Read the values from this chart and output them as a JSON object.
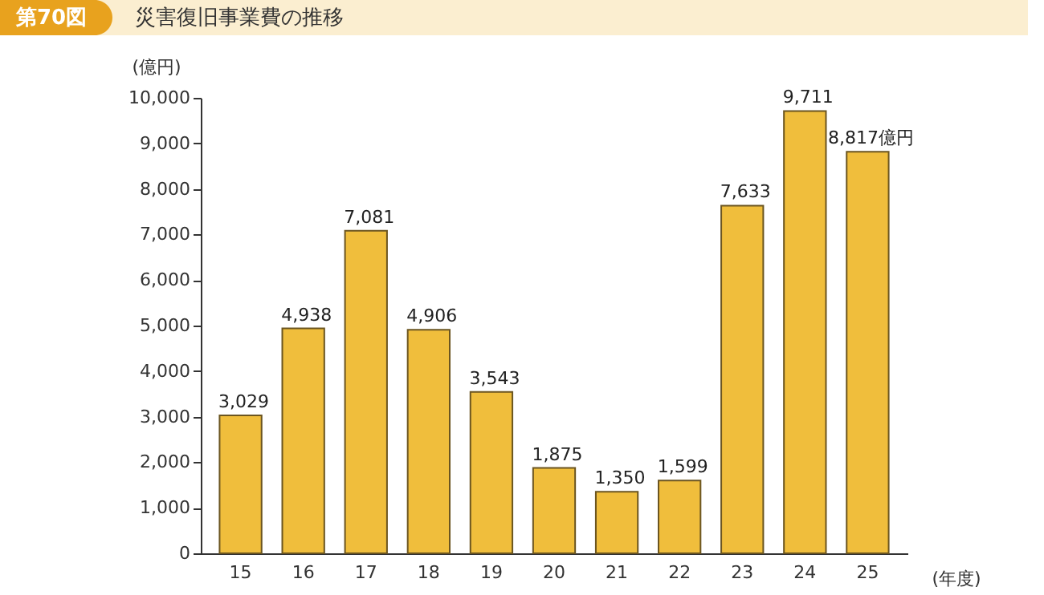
{
  "chart_data": {
    "type": "bar",
    "title": "災害復旧事業費の推移",
    "annotations": [
      "第70図"
    ],
    "ylabel": "(億円)",
    "xlabel": "(年度)",
    "categories": [
      "15",
      "16",
      "17",
      "18",
      "19",
      "20",
      "21",
      "22",
      "23",
      "24",
      "25"
    ],
    "values": [
      3029,
      4938,
      7081,
      4906,
      3543,
      1875,
      1350,
      1599,
      7633,
      9711,
      8817
    ],
    "value_labels": [
      "3,029",
      "4,938",
      "7,081",
      "4,906",
      "3,543",
      "1,875",
      "1,350",
      "1,599",
      "7,633",
      "9,711",
      "8,817億円"
    ],
    "color": "#f0be3c",
    "ylim": [
      0,
      10000
    ],
    "yticks": [
      0,
      {
        "value": 1000,
        "label": "1,000"
      },
      {
        "value": 2000,
        "label": "2,000"
      },
      {
        "value": 3000,
        "label": "3,000"
      },
      {
        "value": 4000,
        "label": "4,000"
      },
      {
        "value": 5000,
        "label": "5,000"
      },
      {
        "value": 6000,
        "label": "6,000"
      },
      {
        "value": 7000,
        "label": "7,000"
      },
      {
        "value": 8000,
        "label": "8,000"
      },
      {
        "value": 9000,
        "label": "9,000"
      },
      {
        "value": 10000,
        "label": "10,000"
      }
    ],
    "grid": false
  }
}
